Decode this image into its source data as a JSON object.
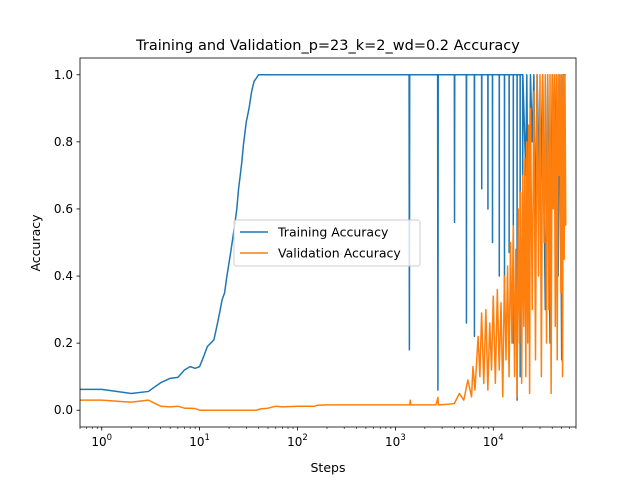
{
  "chart_data": {
    "type": "line",
    "title": "Training and Validation_p=23_k=2_wd=0.2 Accuracy",
    "xlabel": "Steps",
    "ylabel": "Accuracy",
    "xscale": "log",
    "xlim": [
      0.6,
      70000
    ],
    "ylim": [
      -0.05,
      1.05
    ],
    "grid": false,
    "legend_position": "center-right",
    "x_ticks": [
      {
        "value": 1,
        "base": "10",
        "exp": "0"
      },
      {
        "value": 10,
        "base": "10",
        "exp": "1"
      },
      {
        "value": 100,
        "base": "10",
        "exp": "2"
      },
      {
        "value": 1000,
        "base": "10",
        "exp": "3"
      },
      {
        "value": 10000,
        "base": "10",
        "exp": "4"
      }
    ],
    "y_ticks": [
      {
        "value": 0.0,
        "label": "0.0"
      },
      {
        "value": 0.2,
        "label": "0.2"
      },
      {
        "value": 0.4,
        "label": "0.4"
      },
      {
        "value": 0.6,
        "label": "0.6"
      },
      {
        "value": 0.8,
        "label": "0.8"
      },
      {
        "value": 1.0,
        "label": "1.0"
      }
    ],
    "series": [
      {
        "name": "Training Accuracy",
        "color": "#1f77b4",
        "points": [
          [
            0.5,
            0.062
          ],
          [
            1,
            0.062
          ],
          [
            2,
            0.05
          ],
          [
            3,
            0.056
          ],
          [
            4,
            0.082
          ],
          [
            5,
            0.095
          ],
          [
            6,
            0.098
          ],
          [
            7,
            0.12
          ],
          [
            8,
            0.13
          ],
          [
            9,
            0.125
          ],
          [
            10,
            0.13
          ],
          [
            11,
            0.16
          ],
          [
            12,
            0.19
          ],
          [
            13,
            0.2
          ],
          [
            14,
            0.21
          ],
          [
            15,
            0.25
          ],
          [
            16,
            0.29
          ],
          [
            17,
            0.33
          ],
          [
            18,
            0.35
          ],
          [
            19,
            0.4
          ],
          [
            20,
            0.44
          ],
          [
            21,
            0.48
          ],
          [
            22,
            0.52
          ],
          [
            23,
            0.56
          ],
          [
            24,
            0.6
          ],
          [
            25,
            0.66
          ],
          [
            26,
            0.7
          ],
          [
            27,
            0.74
          ],
          [
            28,
            0.79
          ],
          [
            30,
            0.86
          ],
          [
            32,
            0.9
          ],
          [
            34,
            0.95
          ],
          [
            36,
            0.98
          ],
          [
            38,
            0.99
          ],
          [
            40,
            1.0
          ],
          [
            1380,
            1.0
          ],
          [
            1390,
            0.18
          ],
          [
            1400,
            1.0
          ],
          [
            2700,
            1.0
          ],
          [
            2720,
            0.06
          ],
          [
            2740,
            1.0
          ],
          [
            4000,
            1.0
          ],
          [
            4020,
            0.56
          ],
          [
            4040,
            1.0
          ],
          [
            5300,
            1.0
          ],
          [
            5320,
            0.26
          ],
          [
            5340,
            1.0
          ],
          [
            6400,
            1.0
          ],
          [
            6420,
            0.22
          ],
          [
            6440,
            1.0
          ],
          [
            7600,
            1.0
          ],
          [
            7620,
            0.66
          ],
          [
            7640,
            1.0
          ],
          [
            8800,
            1.0
          ],
          [
            8820,
            0.6
          ],
          [
            8840,
            1.0
          ],
          [
            9800,
            1.0
          ],
          [
            9820,
            0.5
          ],
          [
            9840,
            1.0
          ],
          [
            11500,
            1.0
          ],
          [
            11520,
            0.4
          ],
          [
            11540,
            1.0
          ],
          [
            13000,
            1.0
          ],
          [
            13020,
            0.3
          ],
          [
            13040,
            1.0
          ],
          [
            14500,
            1.0
          ],
          [
            14520,
            0.47
          ],
          [
            14540,
            1.0
          ],
          [
            16000,
            1.0
          ],
          [
            16020,
            0.2
          ],
          [
            16040,
            1.0
          ],
          [
            17500,
            1.0
          ],
          [
            17520,
            0.03
          ],
          [
            17540,
            1.0
          ],
          [
            18800,
            1.0
          ],
          [
            18820,
            0.1
          ],
          [
            18840,
            1.0
          ],
          [
            20000,
            1.0
          ],
          [
            20020,
            0.55
          ],
          [
            20040,
            1.0
          ],
          [
            21500,
            0.7
          ],
          [
            22000,
            1.0
          ],
          [
            23000,
            0.35
          ],
          [
            24000,
            1.0
          ],
          [
            25000,
            0.8
          ],
          [
            26000,
            1.0
          ],
          [
            27000,
            0.5
          ],
          [
            28000,
            1.0
          ],
          [
            30000,
            0.6
          ],
          [
            32000,
            1.0
          ],
          [
            34000,
            0.3
          ],
          [
            36000,
            1.0
          ],
          [
            38000,
            0.2
          ],
          [
            40000,
            1.0
          ],
          [
            42000,
            0.65
          ],
          [
            44000,
            1.0
          ],
          [
            46000,
            0.4
          ],
          [
            48000,
            1.0
          ],
          [
            50000,
            0.15
          ],
          [
            52000,
            1.0
          ],
          [
            55000,
            1.0
          ]
        ]
      },
      {
        "name": "Validation Accuracy",
        "color": "#ff7f0e",
        "points": [
          [
            0.5,
            0.03
          ],
          [
            1,
            0.03
          ],
          [
            2,
            0.024
          ],
          [
            3,
            0.03
          ],
          [
            4,
            0.012
          ],
          [
            5,
            0.01
          ],
          [
            6,
            0.012
          ],
          [
            7,
            0.006
          ],
          [
            8,
            0.006
          ],
          [
            9,
            0.005
          ],
          [
            10,
            0.0
          ],
          [
            20,
            0.0
          ],
          [
            38,
            0.0
          ],
          [
            42,
            0.004
          ],
          [
            50,
            0.006
          ],
          [
            60,
            0.012
          ],
          [
            70,
            0.01
          ],
          [
            100,
            0.012
          ],
          [
            150,
            0.012
          ],
          [
            160,
            0.015
          ],
          [
            200,
            0.016
          ],
          [
            300,
            0.016
          ],
          [
            500,
            0.016
          ],
          [
            800,
            0.016
          ],
          [
            1200,
            0.016
          ],
          [
            1400,
            0.016
          ],
          [
            1420,
            0.03
          ],
          [
            1440,
            0.016
          ],
          [
            2000,
            0.016
          ],
          [
            2600,
            0.016
          ],
          [
            2720,
            0.038
          ],
          [
            2750,
            0.016
          ],
          [
            3500,
            0.018
          ],
          [
            4000,
            0.02
          ],
          [
            4500,
            0.05
          ],
          [
            5000,
            0.03
          ],
          [
            5500,
            0.09
          ],
          [
            6000,
            0.04
          ],
          [
            6200,
            0.13
          ],
          [
            6500,
            0.06
          ],
          [
            7000,
            0.22
          ],
          [
            7300,
            0.1
          ],
          [
            7600,
            0.29
          ],
          [
            8000,
            0.08
          ],
          [
            8400,
            0.3
          ],
          [
            8800,
            0.06
          ],
          [
            9200,
            0.26
          ],
          [
            9600,
            0.12
          ],
          [
            10000,
            0.34
          ],
          [
            10500,
            0.08
          ],
          [
            11000,
            0.36
          ],
          [
            11500,
            0.12
          ],
          [
            12000,
            0.32
          ],
          [
            12500,
            0.04
          ],
          [
            13000,
            0.4
          ],
          [
            13500,
            0.15
          ],
          [
            14000,
            0.43
          ],
          [
            14500,
            0.1
          ],
          [
            15000,
            0.5
          ],
          [
            15500,
            0.2
          ],
          [
            16000,
            0.55
          ],
          [
            16500,
            0.1
          ],
          [
            17000,
            0.48
          ],
          [
            17500,
            0.04
          ],
          [
            18000,
            0.6
          ],
          [
            18500,
            0.2
          ],
          [
            19000,
            0.65
          ],
          [
            19500,
            0.08
          ],
          [
            20000,
            0.7
          ],
          [
            20500,
            0.25
          ],
          [
            21000,
            0.75
          ],
          [
            21500,
            0.1
          ],
          [
            22000,
            0.8
          ],
          [
            22500,
            0.2
          ],
          [
            23000,
            0.85
          ],
          [
            23500,
            0.05
          ],
          [
            24000,
            0.9
          ],
          [
            25000,
            0.3
          ],
          [
            26000,
            0.95
          ],
          [
            27000,
            0.15
          ],
          [
            28000,
            1.0
          ],
          [
            29000,
            0.4
          ],
          [
            30000,
            1.0
          ],
          [
            31000,
            0.1
          ],
          [
            32000,
            1.0
          ],
          [
            33000,
            0.5
          ],
          [
            34000,
            1.0
          ],
          [
            35000,
            0.2
          ],
          [
            36000,
            1.0
          ],
          [
            37000,
            0.3
          ],
          [
            38000,
            1.0
          ],
          [
            39000,
            0.05
          ],
          [
            40000,
            1.0
          ],
          [
            41000,
            0.6
          ],
          [
            42000,
            1.0
          ],
          [
            43000,
            0.25
          ],
          [
            44000,
            1.0
          ],
          [
            45000,
            0.15
          ],
          [
            46000,
            1.0
          ],
          [
            47000,
            0.7
          ],
          [
            48000,
            1.0
          ],
          [
            49000,
            0.35
          ],
          [
            50000,
            1.0
          ],
          [
            51000,
            0.1
          ],
          [
            52000,
            1.0
          ],
          [
            53000,
            0.45
          ],
          [
            54000,
            1.0
          ],
          [
            55000,
            0.55
          ]
        ]
      }
    ]
  }
}
